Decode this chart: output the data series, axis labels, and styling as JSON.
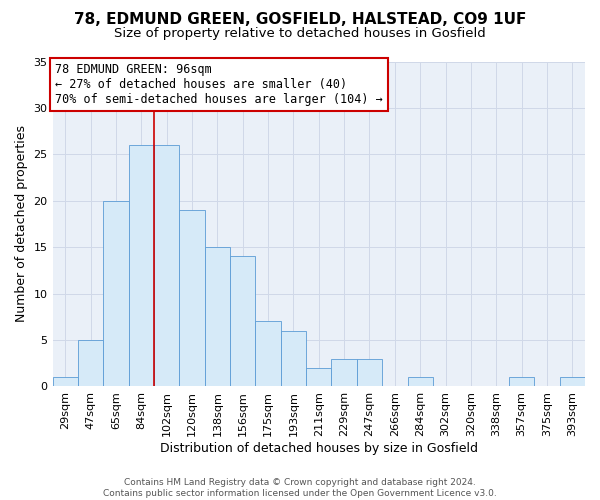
{
  "title": "78, EDMUND GREEN, GOSFIELD, HALSTEAD, CO9 1UF",
  "subtitle": "Size of property relative to detached houses in Gosfield",
  "xlabel": "Distribution of detached houses by size in Gosfield",
  "ylabel": "Number of detached properties",
  "footer_line1": "Contains HM Land Registry data © Crown copyright and database right 2024.",
  "footer_line2": "Contains public sector information licensed under the Open Government Licence v3.0.",
  "bin_labels": [
    "29sqm",
    "47sqm",
    "65sqm",
    "84sqm",
    "102sqm",
    "120sqm",
    "138sqm",
    "156sqm",
    "175sqm",
    "193sqm",
    "211sqm",
    "229sqm",
    "247sqm",
    "266sqm",
    "284sqm",
    "302sqm",
    "320sqm",
    "338sqm",
    "357sqm",
    "375sqm",
    "393sqm"
  ],
  "bar_heights": [
    1,
    5,
    20,
    26,
    26,
    19,
    15,
    14,
    7,
    6,
    2,
    3,
    3,
    0,
    1,
    0,
    0,
    0,
    1,
    0,
    1
  ],
  "bar_color": "#d6eaf8",
  "bar_edge_color": "#5b9bd5",
  "vline_x_index": 3.5,
  "vline_color": "#cc0000",
  "ylim": [
    0,
    35
  ],
  "yticks": [
    0,
    5,
    10,
    15,
    20,
    25,
    30,
    35
  ],
  "annotation_title": "78 EDMUND GREEN: 96sqm",
  "annotation_line1": "← 27% of detached houses are smaller (40)",
  "annotation_line2": "70% of semi-detached houses are larger (104) →",
  "annotation_box_color": "#ffffff",
  "annotation_box_edge": "#cc0000",
  "title_fontsize": 11,
  "subtitle_fontsize": 9.5,
  "axis_label_fontsize": 9,
  "tick_fontsize": 8,
  "annotation_fontsize": 8.5,
  "grid_color": "#d0d8e8",
  "background_color": "#eaf0f8"
}
